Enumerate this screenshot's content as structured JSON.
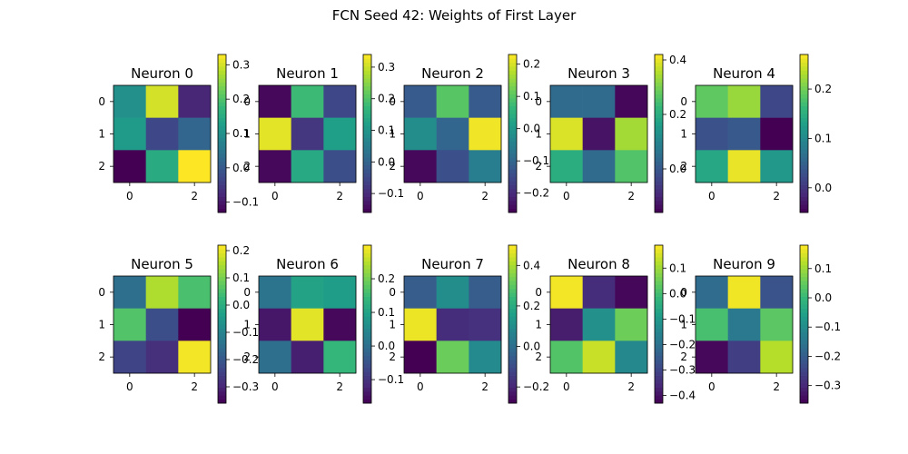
{
  "title": "FCN Seed 42: Weights of First Layer",
  "chart_data": {
    "type": "heatmap",
    "title": "FCN Seed 42: Weights of First Layer",
    "colormap": "viridis",
    "x_ticks": [
      "0",
      "1",
      "2"
    ],
    "x_tick_labels_shown": [
      "0",
      "2"
    ],
    "y_ticks": [
      "0",
      "1",
      "2"
    ],
    "panels": [
      {
        "title": "Neuron 0",
        "matrix": [
          [
            0.1,
            0.3,
            -0.08
          ],
          [
            0.12,
            -0.03,
            0.02
          ],
          [
            -0.13,
            0.15,
            0.33
          ]
        ],
        "clim": [
          -0.13,
          0.33
        ],
        "colorbar_ticks": [
          -0.1,
          0.0,
          0.1,
          0.2,
          0.3
        ],
        "colorbar_tick_labels": [
          "−0.1",
          "0.0",
          "0.1",
          "0.2",
          "0.3"
        ]
      },
      {
        "title": "Neuron 1",
        "matrix": [
          [
            -0.15,
            0.18,
            -0.05
          ],
          [
            0.32,
            -0.08,
            0.12
          ],
          [
            -0.15,
            0.14,
            -0.04
          ]
        ],
        "clim": [
          -0.16,
          0.34
        ],
        "colorbar_ticks": [
          -0.1,
          0.0,
          0.1,
          0.2,
          0.3
        ],
        "colorbar_tick_labels": [
          "−0.1",
          "0.0",
          "0.1",
          "0.2",
          "0.3"
        ]
      },
      {
        "title": "Neuron 2",
        "matrix": [
          [
            -0.12,
            0.1,
            -0.12
          ],
          [
            -0.02,
            -0.1,
            0.22
          ],
          [
            -0.25,
            -0.14,
            -0.05
          ]
        ],
        "clim": [
          -0.26,
          0.23
        ],
        "colorbar_ticks": [
          -0.2,
          -0.1,
          0.0,
          0.1,
          0.2
        ],
        "colorbar_tick_labels": [
          "−0.2",
          "−0.1",
          "0.0",
          "0.1",
          "0.2"
        ]
      },
      {
        "title": "Neuron 3",
        "matrix": [
          [
            0.04,
            0.04,
            -0.15
          ],
          [
            0.39,
            -0.13,
            0.34
          ],
          [
            0.2,
            0.04,
            0.26
          ]
        ],
        "clim": [
          -0.16,
          0.42
        ],
        "colorbar_ticks": [
          0.0,
          0.2,
          0.4
        ],
        "colorbar_tick_labels": [
          "0.0",
          "0.2",
          "0.4"
        ]
      },
      {
        "title": "Neuron 4",
        "matrix": [
          [
            0.19,
            0.22,
            0.02
          ],
          [
            0.03,
            0.04,
            -0.05
          ],
          [
            0.14,
            0.26,
            0.12
          ]
        ],
        "clim": [
          -0.05,
          0.27
        ],
        "colorbar_ticks": [
          0.0,
          0.1,
          0.2
        ],
        "colorbar_tick_labels": [
          "0.0",
          "0.1",
          "0.2"
        ]
      },
      {
        "title": "Neuron 5",
        "matrix": [
          [
            -0.15,
            0.15,
            0.05
          ],
          [
            0.06,
            -0.22,
            -0.36
          ],
          [
            -0.24,
            -0.28,
            0.21
          ]
        ],
        "clim": [
          -0.36,
          0.22
        ],
        "colorbar_ticks": [
          -0.3,
          -0.2,
          -0.1,
          0.0,
          0.1,
          0.2
        ],
        "colorbar_tick_labels": [
          "−0.3",
          "−0.2",
          "−0.1",
          "0.0",
          "0.1",
          "0.2"
        ]
      },
      {
        "title": "Neuron 6",
        "matrix": [
          [
            0.01,
            0.1,
            0.09
          ],
          [
            -0.14,
            0.28,
            -0.16
          ],
          [
            0.0,
            -0.13,
            0.14
          ]
        ],
        "clim": [
          -0.17,
          0.3
        ],
        "colorbar_ticks": [
          -0.1,
          0.0,
          0.1,
          0.2
        ],
        "colorbar_tick_labels": [
          "−0.1",
          "0.0",
          "0.1",
          "0.2"
        ]
      },
      {
        "title": "Neuron 7",
        "matrix": [
          [
            -0.05,
            0.1,
            -0.05
          ],
          [
            0.48,
            -0.18,
            -0.17
          ],
          [
            -0.28,
            0.32,
            0.09
          ]
        ],
        "clim": [
          -0.28,
          0.5
        ],
        "colorbar_ticks": [
          -0.2,
          0.0,
          0.2,
          0.4
        ],
        "colorbar_tick_labels": [
          "−0.2",
          "0.0",
          "0.2",
          "0.4"
        ]
      },
      {
        "title": "Neuron 8",
        "matrix": [
          [
            0.18,
            -0.35,
            -0.42
          ],
          [
            -0.38,
            -0.12,
            0.05
          ],
          [
            0.02,
            0.14,
            -0.14
          ]
        ],
        "clim": [
          -0.43,
          0.19
        ],
        "colorbar_ticks": [
          -0.4,
          -0.3,
          -0.2,
          -0.1,
          0.0,
          0.1
        ],
        "colorbar_tick_labels": [
          "−0.4",
          "−0.3",
          "−0.2",
          "−0.1",
          "0.0",
          "0.1"
        ]
      },
      {
        "title": "Neuron 9",
        "matrix": [
          [
            -0.17,
            0.17,
            -0.22
          ],
          [
            0.02,
            -0.14,
            0.04
          ],
          [
            -0.35,
            -0.26,
            0.12
          ]
        ],
        "clim": [
          -0.36,
          0.18
        ],
        "colorbar_ticks": [
          -0.3,
          -0.2,
          -0.1,
          0.0,
          0.1
        ],
        "colorbar_tick_labels": [
          "−0.3",
          "−0.2",
          "−0.1",
          "0.0",
          "0.1"
        ]
      }
    ]
  }
}
